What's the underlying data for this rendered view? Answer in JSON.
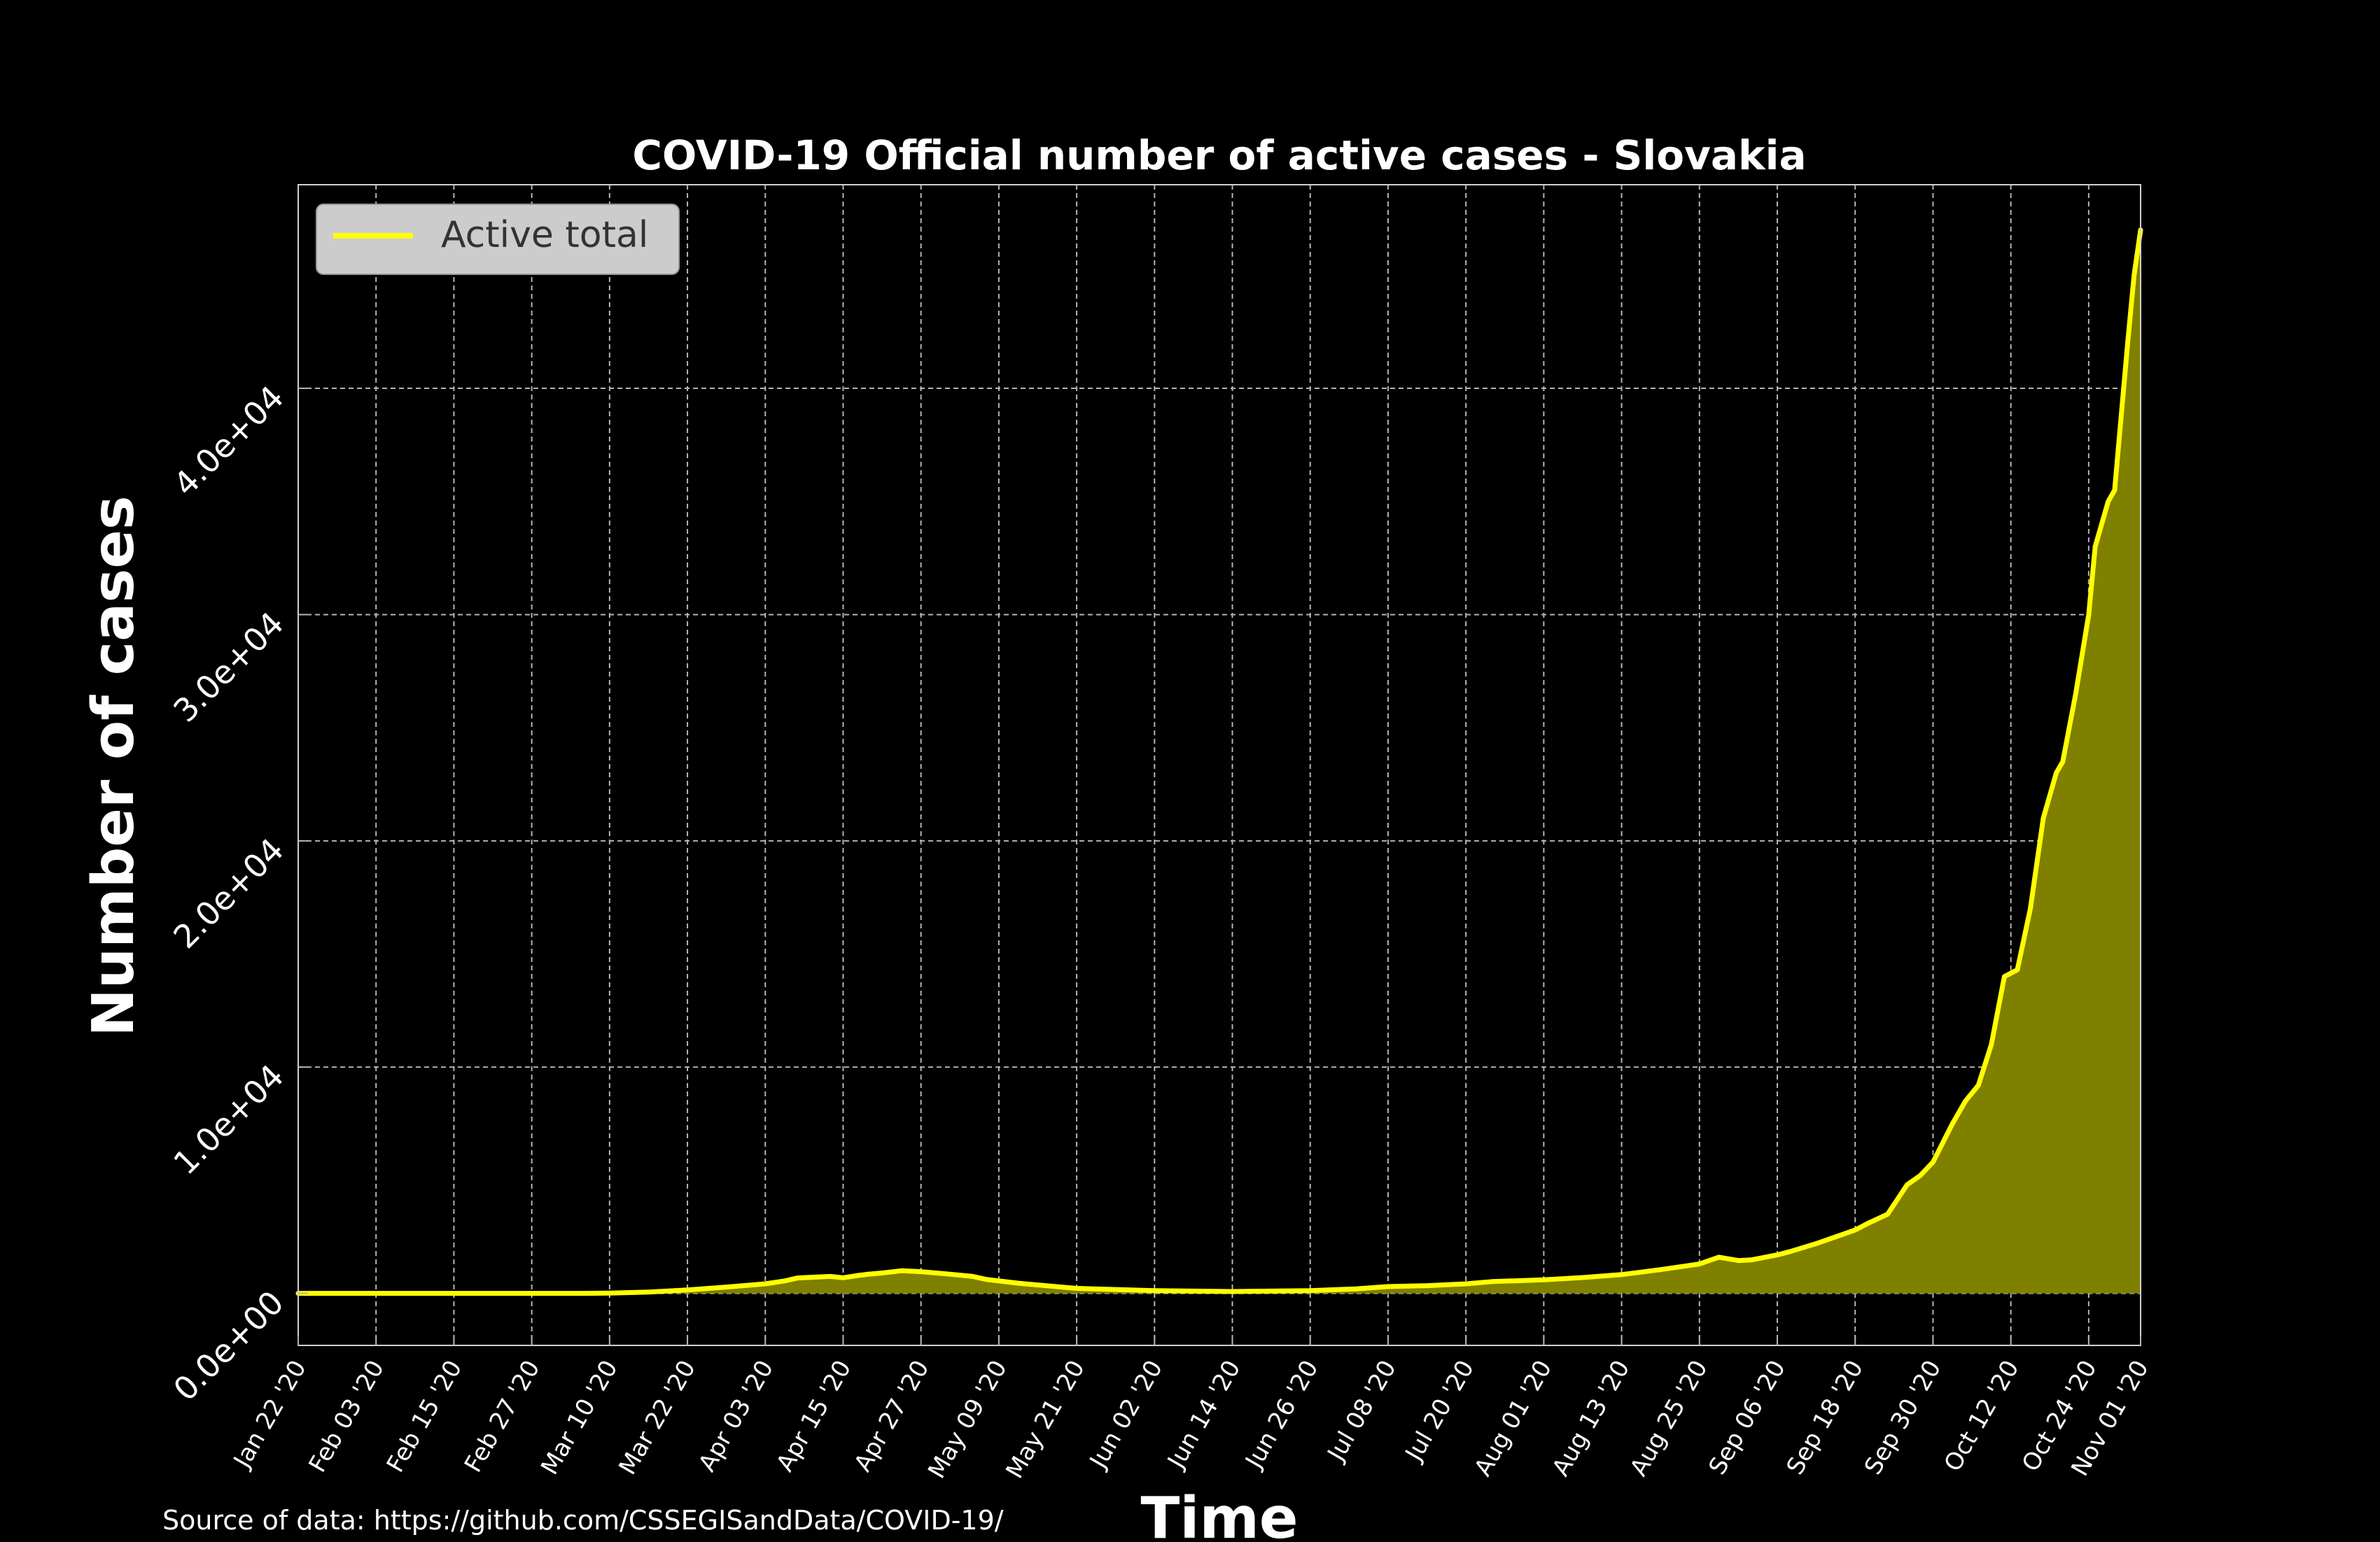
{
  "chart_data": {
    "type": "area",
    "title": "COVID-19 Official number of active cases - Slovakia",
    "xlabel": "Time",
    "ylabel": "Number of cases",
    "source_note": "Source of data: https://github.com/CSSEGISandData/COVID-19/",
    "ylim": [
      -2300,
      49000
    ],
    "xlim": [
      "2020-01-22",
      "2020-11-01"
    ],
    "grid": true,
    "legend_position": "top-left",
    "colors": {
      "line": "#ffff00",
      "fill": "#808000",
      "background": "#000000",
      "grid": "#b4b4b4",
      "legend_bg": "#cccccc"
    },
    "y_ticks": [
      {
        "value": 0,
        "label": "0.0e+00"
      },
      {
        "value": 10000,
        "label": "1.0e+04"
      },
      {
        "value": 20000,
        "label": "2.0e+04"
      },
      {
        "value": 30000,
        "label": "3.0e+04"
      },
      {
        "value": 40000,
        "label": "4.0e+04"
      }
    ],
    "x_ticks": [
      {
        "date": "2020-01-22",
        "label": "Jan 22 '20"
      },
      {
        "date": "2020-02-03",
        "label": "Feb 03 '20"
      },
      {
        "date": "2020-02-15",
        "label": "Feb 15 '20"
      },
      {
        "date": "2020-02-27",
        "label": "Feb 27 '20"
      },
      {
        "date": "2020-03-10",
        "label": "Mar 10 '20"
      },
      {
        "date": "2020-03-22",
        "label": "Mar 22 '20"
      },
      {
        "date": "2020-04-03",
        "label": "Apr 03 '20"
      },
      {
        "date": "2020-04-15",
        "label": "Apr 15 '20"
      },
      {
        "date": "2020-04-27",
        "label": "Apr 27 '20"
      },
      {
        "date": "2020-05-09",
        "label": "May 09 '20"
      },
      {
        "date": "2020-05-21",
        "label": "May 21 '20"
      },
      {
        "date": "2020-06-02",
        "label": "Jun 02 '20"
      },
      {
        "date": "2020-06-14",
        "label": "Jun 14 '20"
      },
      {
        "date": "2020-06-26",
        "label": "Jun 26 '20"
      },
      {
        "date": "2020-07-08",
        "label": "Jul 08 '20"
      },
      {
        "date": "2020-07-20",
        "label": "Jul 20 '20"
      },
      {
        "date": "2020-08-01",
        "label": "Aug 01 '20"
      },
      {
        "date": "2020-08-13",
        "label": "Aug 13 '20"
      },
      {
        "date": "2020-08-25",
        "label": "Aug 25 '20"
      },
      {
        "date": "2020-09-06",
        "label": "Sep 06 '20"
      },
      {
        "date": "2020-09-18",
        "label": "Sep 18 '20"
      },
      {
        "date": "2020-09-30",
        "label": "Sep 30 '20"
      },
      {
        "date": "2020-10-12",
        "label": "Oct 12 '20"
      },
      {
        "date": "2020-10-24",
        "label": "Oct 24 '20"
      },
      {
        "date": "2020-11-01",
        "label": "Nov 01 '20"
      }
    ],
    "series": [
      {
        "name": "Active total",
        "points": [
          [
            "2020-01-22",
            0
          ],
          [
            "2020-02-15",
            0
          ],
          [
            "2020-03-06",
            0
          ],
          [
            "2020-03-10",
            10
          ],
          [
            "2020-03-16",
            60
          ],
          [
            "2020-03-22",
            150
          ],
          [
            "2020-03-28",
            280
          ],
          [
            "2020-04-03",
            420
          ],
          [
            "2020-04-06",
            550
          ],
          [
            "2020-04-08",
            680
          ],
          [
            "2020-04-13",
            750
          ],
          [
            "2020-04-15",
            690
          ],
          [
            "2020-04-17",
            780
          ],
          [
            "2020-04-19",
            850
          ],
          [
            "2020-04-21",
            900
          ],
          [
            "2020-04-24",
            1000
          ],
          [
            "2020-04-27",
            960
          ],
          [
            "2020-05-01",
            860
          ],
          [
            "2020-05-05",
            750
          ],
          [
            "2020-05-07",
            620
          ],
          [
            "2020-05-12",
            450
          ],
          [
            "2020-05-21",
            220
          ],
          [
            "2020-06-02",
            120
          ],
          [
            "2020-06-14",
            80
          ],
          [
            "2020-06-26",
            120
          ],
          [
            "2020-07-03",
            200
          ],
          [
            "2020-07-08",
            300
          ],
          [
            "2020-07-14",
            340
          ],
          [
            "2020-07-20",
            420
          ],
          [
            "2020-07-24",
            520
          ],
          [
            "2020-08-01",
            600
          ],
          [
            "2020-08-07",
            700
          ],
          [
            "2020-08-13",
            830
          ],
          [
            "2020-08-19",
            1050
          ],
          [
            "2020-08-25",
            1300
          ],
          [
            "2020-08-28",
            1600
          ],
          [
            "2020-08-31",
            1450
          ],
          [
            "2020-09-02",
            1480
          ],
          [
            "2020-09-06",
            1700
          ],
          [
            "2020-09-08",
            1850
          ],
          [
            "2020-09-12",
            2200
          ],
          [
            "2020-09-18",
            2800
          ],
          [
            "2020-09-20",
            3100
          ],
          [
            "2020-09-23",
            3500
          ],
          [
            "2020-09-26",
            4800
          ],
          [
            "2020-09-28",
            5200
          ],
          [
            "2020-09-30",
            5800
          ],
          [
            "2020-10-03",
            7500
          ],
          [
            "2020-10-05",
            8500
          ],
          [
            "2020-10-07",
            9200
          ],
          [
            "2020-10-09",
            11000
          ],
          [
            "2020-10-11",
            14000
          ],
          [
            "2020-10-13",
            14300
          ],
          [
            "2020-10-15",
            17000
          ],
          [
            "2020-10-17",
            21000
          ],
          [
            "2020-10-19",
            23000
          ],
          [
            "2020-10-20",
            23500
          ],
          [
            "2020-10-22",
            26500
          ],
          [
            "2020-10-24",
            30000
          ],
          [
            "2020-10-25",
            33000
          ],
          [
            "2020-10-27",
            35000
          ],
          [
            "2020-10-28",
            35500
          ],
          [
            "2020-10-30",
            42000
          ],
          [
            "2020-10-31",
            45000
          ],
          [
            "2020-11-01",
            47000
          ]
        ]
      }
    ]
  }
}
